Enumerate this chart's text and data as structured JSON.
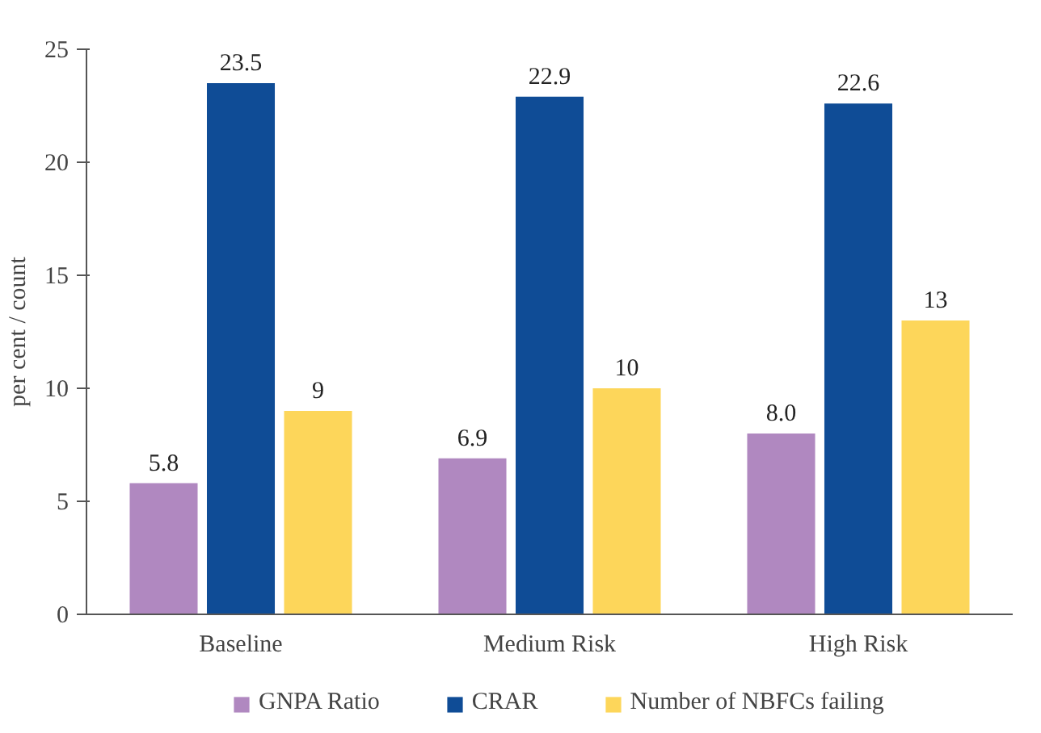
{
  "chart_data": {
    "type": "bar",
    "ylabel": "per cent / count",
    "categories": [
      "Baseline",
      "Medium Risk",
      "High Risk"
    ],
    "series": [
      {
        "name": "GNPA Ratio",
        "color": "#b088c0",
        "values": [
          5.8,
          6.9,
          8.0
        ],
        "value_labels": [
          "5.8",
          "6.9",
          "8.0"
        ]
      },
      {
        "name": "CRAR",
        "color": "#0f4c96",
        "values": [
          23.5,
          22.9,
          22.6
        ],
        "value_labels": [
          "23.5",
          "22.9",
          "22.6"
        ]
      },
      {
        "name": "Number of NBFCs failing",
        "color": "#fdd65a",
        "values": [
          9,
          10,
          13
        ],
        "value_labels": [
          "9",
          "10",
          "13"
        ]
      }
    ],
    "ylim": [
      0,
      25
    ],
    "yticks": [
      0,
      5,
      10,
      15,
      20,
      25
    ],
    "grid": false,
    "legend": "bottom"
  }
}
